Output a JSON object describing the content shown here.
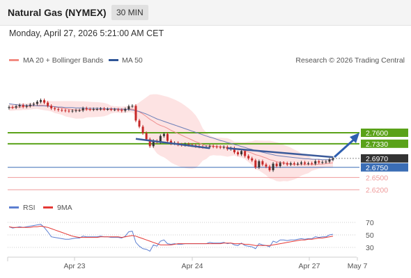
{
  "header": {
    "title": "Natural Gas (NYMEX)",
    "timeframe": "30 MIN"
  },
  "datetime": "Monday, April 27, 2026 5:21:00 AM CET",
  "copyright": "Research © 2026 Trading Central",
  "colors": {
    "resistance": "#5aa219",
    "support": "#ef9a9a",
    "pivot": "#3a6db5",
    "last": "#333333",
    "candle_up": "#333333",
    "candle_down": "#c62828",
    "bollinger": "#fde0e0",
    "ma20": "#ef8f8f",
    "ma50": "#6c7fb8",
    "rsi": "#5c7fd1",
    "rsi_ma": "#e53935"
  },
  "chart_data": [
    {
      "type": "candlestick",
      "legend": [
        {
          "name": "MA 20 + Bollinger Bands",
          "color": "#f28b82"
        },
        {
          "name": "MA 50",
          "color": "#2f5597"
        }
      ],
      "levels": [
        {
          "label": "2.7600",
          "value": 2.76,
          "kind": "resistance"
        },
        {
          "label": "2.7330",
          "value": 2.733,
          "kind": "resistance"
        },
        {
          "label": "2.6970",
          "value": 2.697,
          "kind": "last"
        },
        {
          "label": "2.6750",
          "value": 2.675,
          "kind": "pivot"
        },
        {
          "label": "2.6500",
          "value": 2.65,
          "kind": "support"
        },
        {
          "label": "2.6200",
          "value": 2.62,
          "kind": "support"
        }
      ],
      "x_labels": [
        "Apr 23",
        "Apr 24",
        "Apr 27",
        "May 7"
      ],
      "close": [
        2.823,
        2.822,
        2.825,
        2.828,
        2.824,
        2.826,
        2.829,
        2.831,
        2.836,
        2.84,
        2.834,
        2.826,
        2.82,
        2.818,
        2.816,
        2.815,
        2.814,
        2.813,
        2.814,
        2.815,
        2.815,
        2.82,
        2.818,
        2.817,
        2.818,
        2.818,
        2.819,
        2.818,
        2.818,
        2.817,
        2.817,
        2.816,
        2.814,
        2.818,
        2.825,
        2.826,
        2.79,
        2.775,
        2.759,
        2.744,
        2.727,
        2.74,
        2.737,
        2.752,
        2.757,
        2.74,
        2.734,
        2.735,
        2.731,
        2.73,
        2.732,
        2.73,
        2.729,
        2.727,
        2.726,
        2.725,
        2.725,
        2.727,
        2.726,
        2.725,
        2.724,
        2.725,
        2.72,
        2.722,
        2.712,
        2.707,
        2.715,
        2.703,
        2.697,
        2.692,
        2.675,
        2.69,
        2.682,
        2.677,
        2.668,
        2.684,
        2.678,
        2.686,
        2.685,
        2.682,
        2.685,
        2.683,
        2.684,
        2.687,
        2.684,
        2.685,
        2.684,
        2.69,
        2.687,
        2.688,
        2.689,
        2.694,
        2.697
      ],
      "ma20": [
        2.822,
        2.822,
        2.823,
        2.823,
        2.824,
        2.824,
        2.825,
        2.826,
        2.827,
        2.828,
        2.827,
        2.826,
        2.825,
        2.823,
        2.822,
        2.821,
        2.819,
        2.818,
        2.817,
        2.816,
        2.816,
        2.816,
        2.817,
        2.817,
        2.817,
        2.817,
        2.817,
        2.817,
        2.817,
        2.817,
        2.817,
        2.817,
        2.816,
        2.817,
        2.818,
        2.818,
        2.815,
        2.811,
        2.806,
        2.8,
        2.793,
        2.788,
        2.782,
        2.778,
        2.775,
        2.771,
        2.766,
        2.762,
        2.758,
        2.754,
        2.75,
        2.746,
        2.742,
        2.738,
        2.735,
        2.731,
        2.728,
        2.728,
        2.727,
        2.726,
        2.726,
        2.725,
        2.724,
        2.723,
        2.721,
        2.719,
        2.718,
        2.716,
        2.713,
        2.71,
        2.706,
        2.704,
        2.701,
        2.698,
        2.694,
        2.692,
        2.689,
        2.687,
        2.686,
        2.684,
        2.683,
        2.682,
        2.682,
        2.682,
        2.682,
        2.682,
        2.682,
        2.682,
        2.683,
        2.683,
        2.684,
        2.685,
        2.686
      ],
      "ma50": [
        2.831,
        2.83,
        2.829,
        2.828,
        2.828,
        2.827,
        2.827,
        2.827,
        2.826,
        2.826,
        2.826,
        2.825,
        2.825,
        2.824,
        2.823,
        2.823,
        2.822,
        2.822,
        2.822,
        2.821,
        2.821,
        2.821,
        2.82,
        2.82,
        2.82,
        2.82,
        2.82,
        2.819,
        2.819,
        2.819,
        2.819,
        2.818,
        2.818,
        2.818,
        2.817,
        2.816,
        2.814,
        2.812,
        2.809,
        2.806,
        2.802,
        2.798,
        2.794,
        2.791,
        2.788,
        2.785,
        2.782,
        2.779,
        2.776,
        2.773,
        2.77,
        2.767,
        2.764,
        2.761,
        2.758,
        2.755,
        2.752,
        2.749,
        2.747,
        2.744,
        2.741,
        2.739,
        2.736,
        2.734,
        2.731,
        2.729,
        2.726,
        2.724,
        2.721,
        2.719,
        2.716,
        2.714,
        2.712,
        2.71,
        2.708,
        2.706,
        2.704,
        2.703,
        2.702,
        2.701,
        2.7,
        2.699,
        2.698,
        2.697,
        2.696,
        2.696,
        2.695,
        2.695,
        2.695,
        2.694,
        2.694,
        2.694,
        2.694
      ]
    },
    {
      "type": "line",
      "legend": [
        {
          "name": "RSI",
          "color": "#5c7fd1"
        },
        {
          "name": "9MA",
          "color": "#e53935"
        }
      ],
      "y_ticks": [
        70,
        50,
        30
      ],
      "rsi": [
        63,
        61,
        62,
        63,
        62,
        63,
        64,
        65,
        66,
        67,
        62,
        55,
        47,
        46,
        45,
        44,
        43,
        43,
        44,
        45,
        45,
        48,
        47,
        47,
        47,
        47,
        48,
        47,
        47,
        46,
        46,
        46,
        45,
        48,
        55,
        56,
        38,
        32,
        28,
        27,
        24,
        34,
        32,
        40,
        42,
        36,
        35,
        36,
        35,
        35,
        36,
        36,
        36,
        36,
        36,
        36,
        36,
        38,
        37,
        37,
        37,
        38,
        36,
        37,
        34,
        33,
        37,
        33,
        32,
        31,
        28,
        36,
        34,
        33,
        31,
        40,
        38,
        42,
        42,
        41,
        42,
        42,
        43,
        44,
        43,
        44,
        44,
        47,
        46,
        47,
        47,
        50,
        51
      ],
      "ma9": [
        63,
        62,
        62,
        62,
        62,
        62,
        62,
        63,
        63,
        64,
        63,
        62,
        60,
        58,
        56,
        54,
        52,
        50,
        48,
        47,
        46,
        46,
        46,
        46,
        46,
        46,
        47,
        47,
        47,
        47,
        47,
        47,
        46,
        47,
        48,
        49,
        48,
        46,
        44,
        42,
        40,
        38,
        36,
        34,
        34,
        34,
        34,
        35,
        36,
        36,
        36,
        36,
        36,
        36,
        36,
        36,
        36,
        36,
        36,
        36,
        36,
        37,
        37,
        37,
        36,
        36,
        36,
        35,
        35,
        34,
        33,
        33,
        33,
        33,
        33,
        34,
        35,
        36,
        37,
        38,
        39,
        40,
        41,
        42,
        42,
        43,
        43,
        44,
        45,
        45,
        46,
        47,
        48
      ]
    }
  ]
}
